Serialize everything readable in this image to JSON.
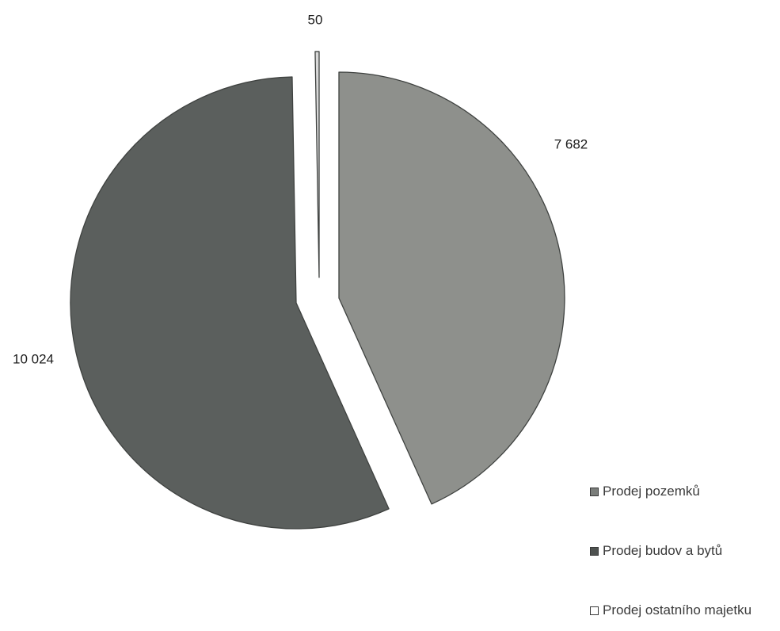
{
  "chart_data": {
    "type": "pie",
    "exploded": true,
    "legend_position": "bottom-right",
    "slices": [
      {
        "label": "Prodej pozemků",
        "value": 7682,
        "value_label": "7 682",
        "color": "#8e908c"
      },
      {
        "label": "Prodej budov a bytů",
        "value": 10024,
        "value_label": "10 024",
        "color": "#5b5f5d"
      },
      {
        "label": "Prodej ostatního majetku",
        "value": 50,
        "value_label": "50",
        "color": "#d8d8d8"
      }
    ]
  },
  "legend": {
    "items": [
      {
        "label": "Prodej pozemků",
        "swatch_color": "#7a7d7a"
      },
      {
        "label": "Prodej budov a bytů",
        "swatch_color": "#4e5250"
      },
      {
        "label": "Prodej ostatního majetku",
        "swatch_color": "#ffffff"
      }
    ]
  }
}
